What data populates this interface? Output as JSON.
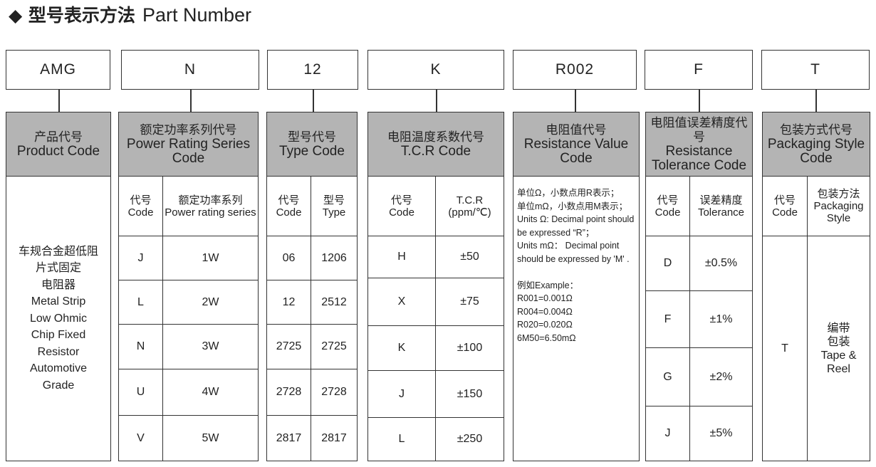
{
  "title": {
    "zh": "◆ 型号表示方法",
    "en": "Part Number"
  },
  "header_bg": "#b4b4b4",
  "columns": [
    {
      "code": "AMG",
      "zh": "产品代号",
      "en": "Product Code",
      "description": [
        "车规合金超低阻",
        "片式固定",
        "电阻器",
        "Metal Strip",
        "Low Ohmic",
        "Chip Fixed",
        "Resistor",
        "Automotive",
        "Grade"
      ]
    },
    {
      "code": "N",
      "zh": "额定功率系列代号",
      "en": "Power Rating Series Code",
      "headers": [
        [
          "代号",
          "Code"
        ],
        [
          "额定功率系列",
          "Power rating series"
        ]
      ],
      "rows": [
        [
          "J",
          "1W"
        ],
        [
          "L",
          "2W"
        ],
        [
          "N",
          "3W"
        ],
        [
          "U",
          "4W"
        ],
        [
          "V",
          "5W"
        ]
      ]
    },
    {
      "code": "12",
      "zh": "型号代号",
      "en": "Type Code",
      "headers": [
        [
          "代号",
          "Code"
        ],
        [
          "型号",
          "Type"
        ]
      ],
      "rows": [
        [
          "06",
          "1206"
        ],
        [
          "12",
          "2512"
        ],
        [
          "2725",
          "2725"
        ],
        [
          "2728",
          "2728"
        ],
        [
          "2817",
          "2817"
        ]
      ]
    },
    {
      "code": "K",
      "zh": "电阻温度系数代号",
      "en": "T.C.R Code",
      "headers": [
        [
          "代号",
          "Code"
        ],
        [
          "T.C.R",
          "(ppm/℃)"
        ]
      ],
      "rows": [
        [
          "H",
          "±50"
        ],
        [
          "X",
          "±75"
        ],
        [
          "K",
          "±100"
        ],
        [
          "J",
          "±150"
        ],
        [
          "L",
          "±250"
        ]
      ]
    },
    {
      "code": "R002",
      "zh": "电阻值代号",
      "en": "Resistance Value Code",
      "notes": [
        "单位Ω，小数点用R表示；",
        "单位mΩ，小数点用M表示；",
        "Units Ω: Decimal point should be expressed “R”；",
        "Units mΩ： Decimal point should be expressed by 'M' .",
        "",
        "例如Example：",
        "R001=0.001Ω",
        "R004=0.004Ω",
        "R020=0.020Ω",
        "6M50=6.50mΩ"
      ]
    },
    {
      "code": "F",
      "zh": "电阻值误差精度代号",
      "en": "Resistance Tolerance Code",
      "headers": [
        [
          "代号",
          "Code"
        ],
        [
          "误差精度",
          "Tolerance"
        ]
      ],
      "rows": [
        [
          "D",
          "±0.5%"
        ],
        [
          "F",
          "±1%"
        ],
        [
          "G",
          "±2%"
        ],
        [
          "J",
          "±5%"
        ]
      ]
    },
    {
      "code": "T",
      "zh": "包装方式代号",
      "en": "Packaging Style Code",
      "headers": [
        [
          "代号",
          "Code"
        ],
        [
          "包装方法",
          "Packaging Style"
        ]
      ],
      "rows": [
        [
          "T",
          "编带包装 Tape & Reel"
        ]
      ]
    }
  ]
}
